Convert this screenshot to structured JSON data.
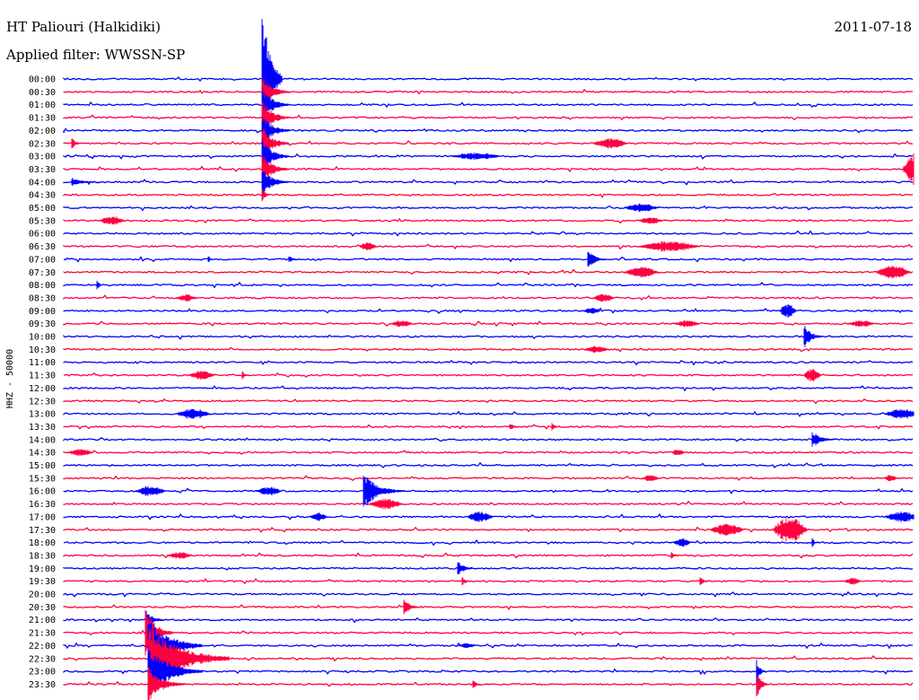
{
  "header": {
    "station": "HT Paliouri (Halkidiki)",
    "filter": "Applied filter: WWSSN-SP",
    "date": "2011-07-18"
  },
  "chart_data": {
    "type": "line",
    "ylabel": "HHZ - 50000",
    "colors": [
      "#0000ff",
      "#ff0040"
    ],
    "rows": [
      "00:00",
      "00:30",
      "01:00",
      "01:30",
      "02:00",
      "02:30",
      "03:00",
      "03:30",
      "04:00",
      "04:30",
      "05:00",
      "05:30",
      "06:00",
      "06:30",
      "07:00",
      "07:30",
      "08:00",
      "08:30",
      "09:00",
      "09:30",
      "10:00",
      "10:30",
      "11:00",
      "11:30",
      "12:00",
      "12:30",
      "13:00",
      "13:30",
      "14:00",
      "14:30",
      "15:00",
      "15:30",
      "16:00",
      "16:30",
      "17:00",
      "17:30",
      "18:00",
      "18:30",
      "19:00",
      "19:30",
      "20:00",
      "20:30",
      "21:00",
      "21:30",
      "22:00",
      "22:30",
      "23:00",
      "23:30"
    ]
  }
}
